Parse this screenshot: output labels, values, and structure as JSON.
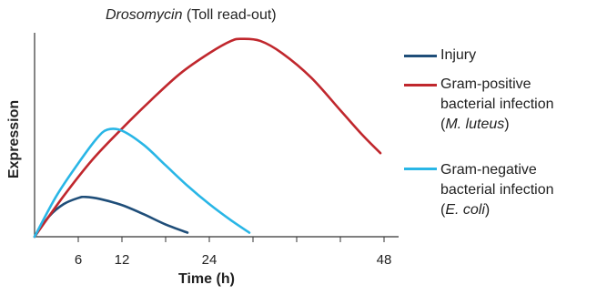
{
  "chart_data": {
    "type": "line",
    "title_italic": "Drosomycin",
    "title_rest": " (Toll read-out)",
    "xlabel": "Time (h)",
    "ylabel": "Expression",
    "xlim": [
      0,
      50
    ],
    "ylim": [
      0,
      1
    ],
    "xticks": [
      0,
      6,
      12,
      18,
      24,
      30,
      36,
      42,
      48
    ],
    "xtick_labels": [
      "6",
      "12",
      "24",
      "48"
    ],
    "xtick_label_values": [
      6,
      12,
      24,
      48
    ],
    "legend_position": "right",
    "series": [
      {
        "name": "Injury",
        "color": "#1f4e79",
        "x": [
          0,
          2,
          4,
          6,
          7,
          9,
          12,
          15,
          18,
          21
        ],
        "y": [
          0,
          0.1,
          0.16,
          0.19,
          0.195,
          0.185,
          0.155,
          0.11,
          0.06,
          0.02
        ]
      },
      {
        "name": "Gram-positive bacterial infection (M. luteus)",
        "color": "#c0272d",
        "x": [
          0,
          4,
          8,
          12,
          16,
          20,
          24,
          27,
          28.5,
          31,
          34,
          38,
          42,
          45,
          47.5
        ],
        "y": [
          0,
          0.2,
          0.38,
          0.53,
          0.67,
          0.8,
          0.9,
          0.96,
          0.97,
          0.96,
          0.9,
          0.78,
          0.62,
          0.5,
          0.41
        ]
      },
      {
        "name": "Gram-negative bacterial infection (E. coli)",
        "color": "#29b6e6",
        "x": [
          0,
          3,
          6,
          8.5,
          10,
          12,
          15,
          18,
          21,
          24,
          27,
          29.5
        ],
        "y": [
          0,
          0.2,
          0.36,
          0.48,
          0.525,
          0.52,
          0.45,
          0.35,
          0.25,
          0.16,
          0.08,
          0.02
        ]
      }
    ],
    "legend": [
      {
        "lines": [
          {
            "t": "Injury",
            "i": ""
          }
        ]
      },
      {
        "lines": [
          {
            "t": "Gram-positive",
            "i": ""
          },
          {
            "t": "bacterial infection",
            "i": ""
          },
          {
            "t": "(",
            "i": "M. luteus",
            "after": ")"
          }
        ]
      },
      {
        "lines": [
          {
            "t": "Gram-negative",
            "i": ""
          },
          {
            "t": "bacterial infection",
            "i": ""
          },
          {
            "t": "(",
            "i": "E. coli",
            "after": ")"
          }
        ]
      }
    ]
  }
}
